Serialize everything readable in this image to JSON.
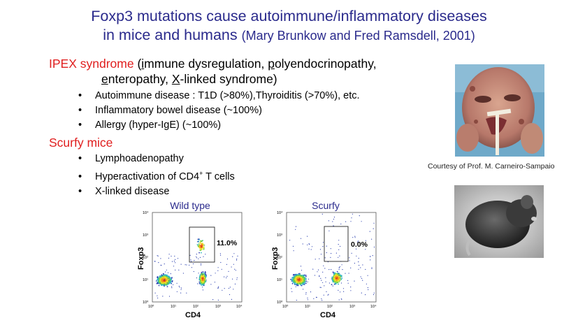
{
  "title": {
    "line1": "Foxp3 mutations cause autoimmune/inflammatory diseases",
    "line2_main": "in mice and humans",
    "line2_cite": "(Mary Brunkow and Fred Ramsdell, 2001)"
  },
  "ipex": {
    "heading": "IPEX syndrome",
    "paren_open": " (",
    "i_letter": "i",
    "mmune": "mmune dysregulation, ",
    "p_letter": "p",
    "olyendo": "olyendocrinopathy,",
    "e_letter": "e",
    "nteropathy": "nteropathy, ",
    "x_letter": "X",
    "linked": "-linked syndrome)",
    "bullets": [
      "Autoimmune disease : T1D (>80%),Thyroiditis (>70%), etc.",
      "Inflammatory bowel disease (~100%)",
      "Allergy (hyper-IgE) (~100%)"
    ]
  },
  "scurfy": {
    "heading": "Scurfy mice",
    "bullets": [
      "Lymphoadenopathy",
      "Hyperactivation of CD4",
      "X-linked disease"
    ],
    "sup_plus": "+",
    "tcells": " T cells"
  },
  "photo": {
    "credit": "Courtesy of Prof. M. Carneiro-Sampaio"
  },
  "plots": {
    "left": {
      "title": "Wild type",
      "gate_pct": "11.0%"
    },
    "right": {
      "title": "Scurfy",
      "gate_pct": "0.0%"
    },
    "xlabel": "CD4",
    "ylabel": "Foxp3",
    "ticks": [
      "10⁰",
      "10¹",
      "10²",
      "10³",
      "10⁴"
    ]
  },
  "colors": {
    "title": "#2a2a8c",
    "heading": "#e01e1e"
  }
}
